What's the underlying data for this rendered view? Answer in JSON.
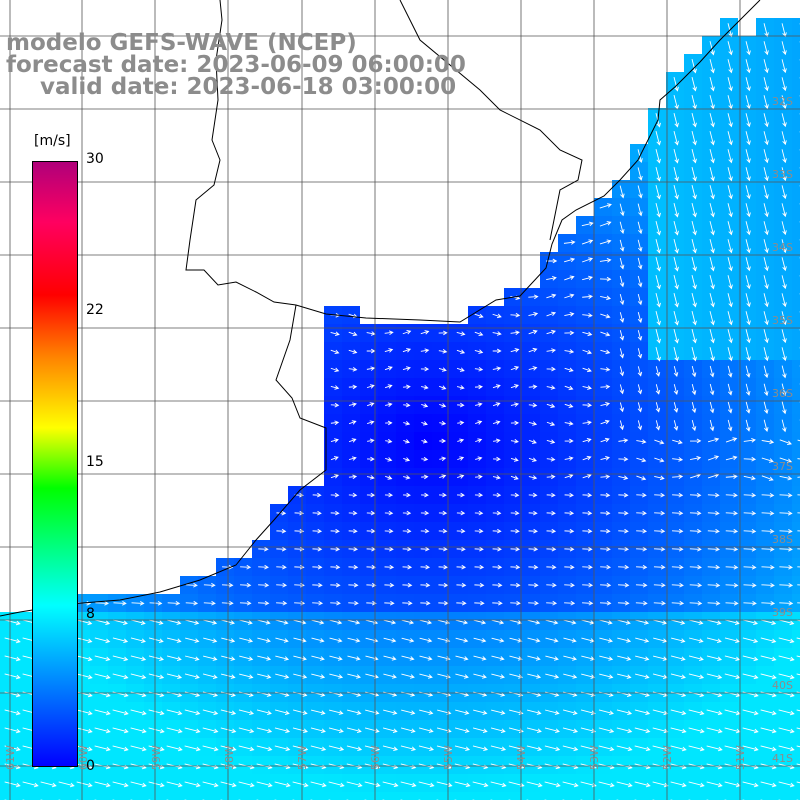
{
  "title": {
    "model": "modelo GEFS-WAVE (NCEP)",
    "forecast": "forecast date: 2023-06-09 06:00:00",
    "valid": "valid date: 2023-06-18 03:00:00"
  },
  "colorbar": {
    "unit": "[m/s]",
    "ticks": [
      "30",
      "22",
      "15",
      "8",
      "0"
    ],
    "min": 0,
    "max": 30,
    "colors": [
      "#0000ff",
      "#0080ff",
      "#00ffff",
      "#00ff00",
      "#ffff00",
      "#ff8000",
      "#ff0000",
      "#b0007a"
    ]
  },
  "grid": {
    "lat_labels": [
      "32S",
      "33S",
      "34S",
      "35S",
      "36S",
      "37S",
      "38S",
      "39S",
      "40S",
      "41S"
    ],
    "lon_labels": [
      "61W",
      "60W",
      "59W",
      "58W",
      "57W",
      "56W",
      "55W",
      "54W",
      "53W",
      "52W",
      "51W"
    ]
  },
  "colors": {
    "land": "#ffffff",
    "coast": "#000000",
    "grid": "#555555",
    "arrow": "#ffffff",
    "label": "#8c8c8c"
  }
}
